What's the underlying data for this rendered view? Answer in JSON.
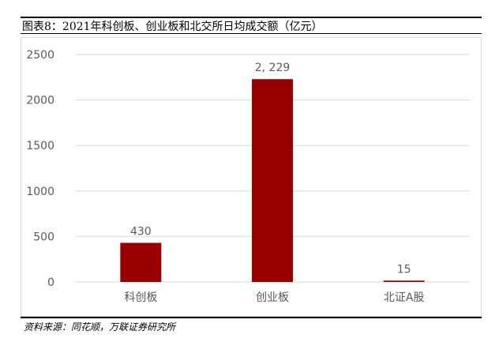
{
  "title": "图表8：2021年科创板、创业板和北交所日均成交额（亿元）",
  "source": "资料来源：同花顺，万联证券研究所",
  "chart_data": {
    "type": "bar",
    "categories": [
      "科创板",
      "创业板",
      "北证A股"
    ],
    "values": [
      430,
      2229,
      15
    ],
    "data_labels": [
      "430",
      "2, 229",
      "15"
    ],
    "ylim": [
      0,
      2500
    ],
    "yticks": [
      0,
      500,
      1000,
      1500,
      2000,
      2500
    ],
    "grid": true,
    "legend": "none",
    "bar_color": "#990000",
    "grid_color": "#d9d9d9",
    "label_color": "#595959"
  }
}
